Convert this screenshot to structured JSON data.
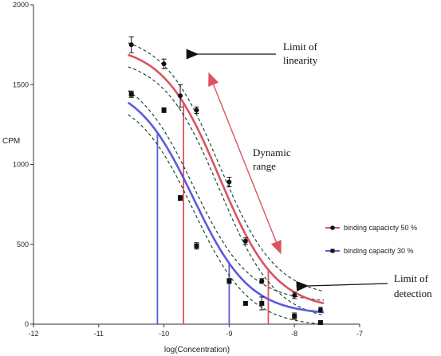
{
  "chart_data": {
    "type": "scatter",
    "xlabel": "log(Concentration)",
    "ylabel": "CPM",
    "xlim": [
      -12,
      -7
    ],
    "ylim": [
      0,
      2000
    ],
    "x_ticks": [
      -12,
      -11,
      -10,
      -9,
      -8,
      -7
    ],
    "y_ticks": [
      0,
      500,
      1000,
      1500,
      2000
    ],
    "x_tick_labels": [
      "-12",
      "-11",
      "-10",
      "-9",
      "-8",
      "-7"
    ],
    "y_tick_labels": [
      "0",
      "500",
      "1000",
      "1500",
      "2000"
    ],
    "grid": false,
    "legend_position": "right",
    "series": [
      {
        "name": "binding capacicty 50 %",
        "color": "#d9545f",
        "marker": "circle",
        "points": [
          {
            "x": -10.5,
            "y": 1750,
            "err": 50
          },
          {
            "x": -10.0,
            "y": 1630,
            "err": 30
          },
          {
            "x": -9.75,
            "y": 1430,
            "err": 70
          },
          {
            "x": -9.5,
            "y": 1340,
            "err": 20
          },
          {
            "x": -9.0,
            "y": 890,
            "err": 30
          },
          {
            "x": -8.75,
            "y": 520,
            "err": 20
          },
          {
            "x": -8.5,
            "y": 270,
            "err": 15
          },
          {
            "x": -8.0,
            "y": 180,
            "err": 20
          },
          {
            "x": -7.6,
            "y": 90,
            "err": 15
          }
        ],
        "fit": {
          "top": 1750,
          "bottom": 90,
          "log_ec50": -9.15,
          "hill": -1.0
        }
      },
      {
        "name": "binding capacity 30 %",
        "color": "#5b5bd9",
        "marker": "square",
        "points": [
          {
            "x": -10.5,
            "y": 1440,
            "err": 20
          },
          {
            "x": -10.0,
            "y": 1340,
            "err": 15
          },
          {
            "x": -9.75,
            "y": 790,
            "err": 15
          },
          {
            "x": -9.5,
            "y": 490,
            "err": 20
          },
          {
            "x": -9.0,
            "y": 270,
            "err": 15
          },
          {
            "x": -8.75,
            "y": 130,
            "err": 10
          },
          {
            "x": -8.5,
            "y": 130,
            "err": 40
          },
          {
            "x": -8.0,
            "y": 50,
            "err": 20
          },
          {
            "x": -7.6,
            "y": 10,
            "err": 10
          }
        ],
        "fit": {
          "top": 1520,
          "bottom": 60,
          "log_ec50": -9.55,
          "hill": -1.0
        }
      }
    ],
    "confidence_bands": {
      "style": "dashed",
      "color": "#1a4a3a",
      "delta": 75
    },
    "markers": {
      "red_verticals_x": [
        -9.7,
        -8.4
      ],
      "blue_verticals_x": [
        -10.1,
        -9.0
      ]
    },
    "annotations": [
      {
        "text_lines": [
          "Limit of",
          "linearity"
        ]
      },
      {
        "text_lines": [
          "Dynamic",
          "range"
        ]
      },
      {
        "text_lines": [
          "Limit of",
          "detection"
        ]
      }
    ]
  }
}
